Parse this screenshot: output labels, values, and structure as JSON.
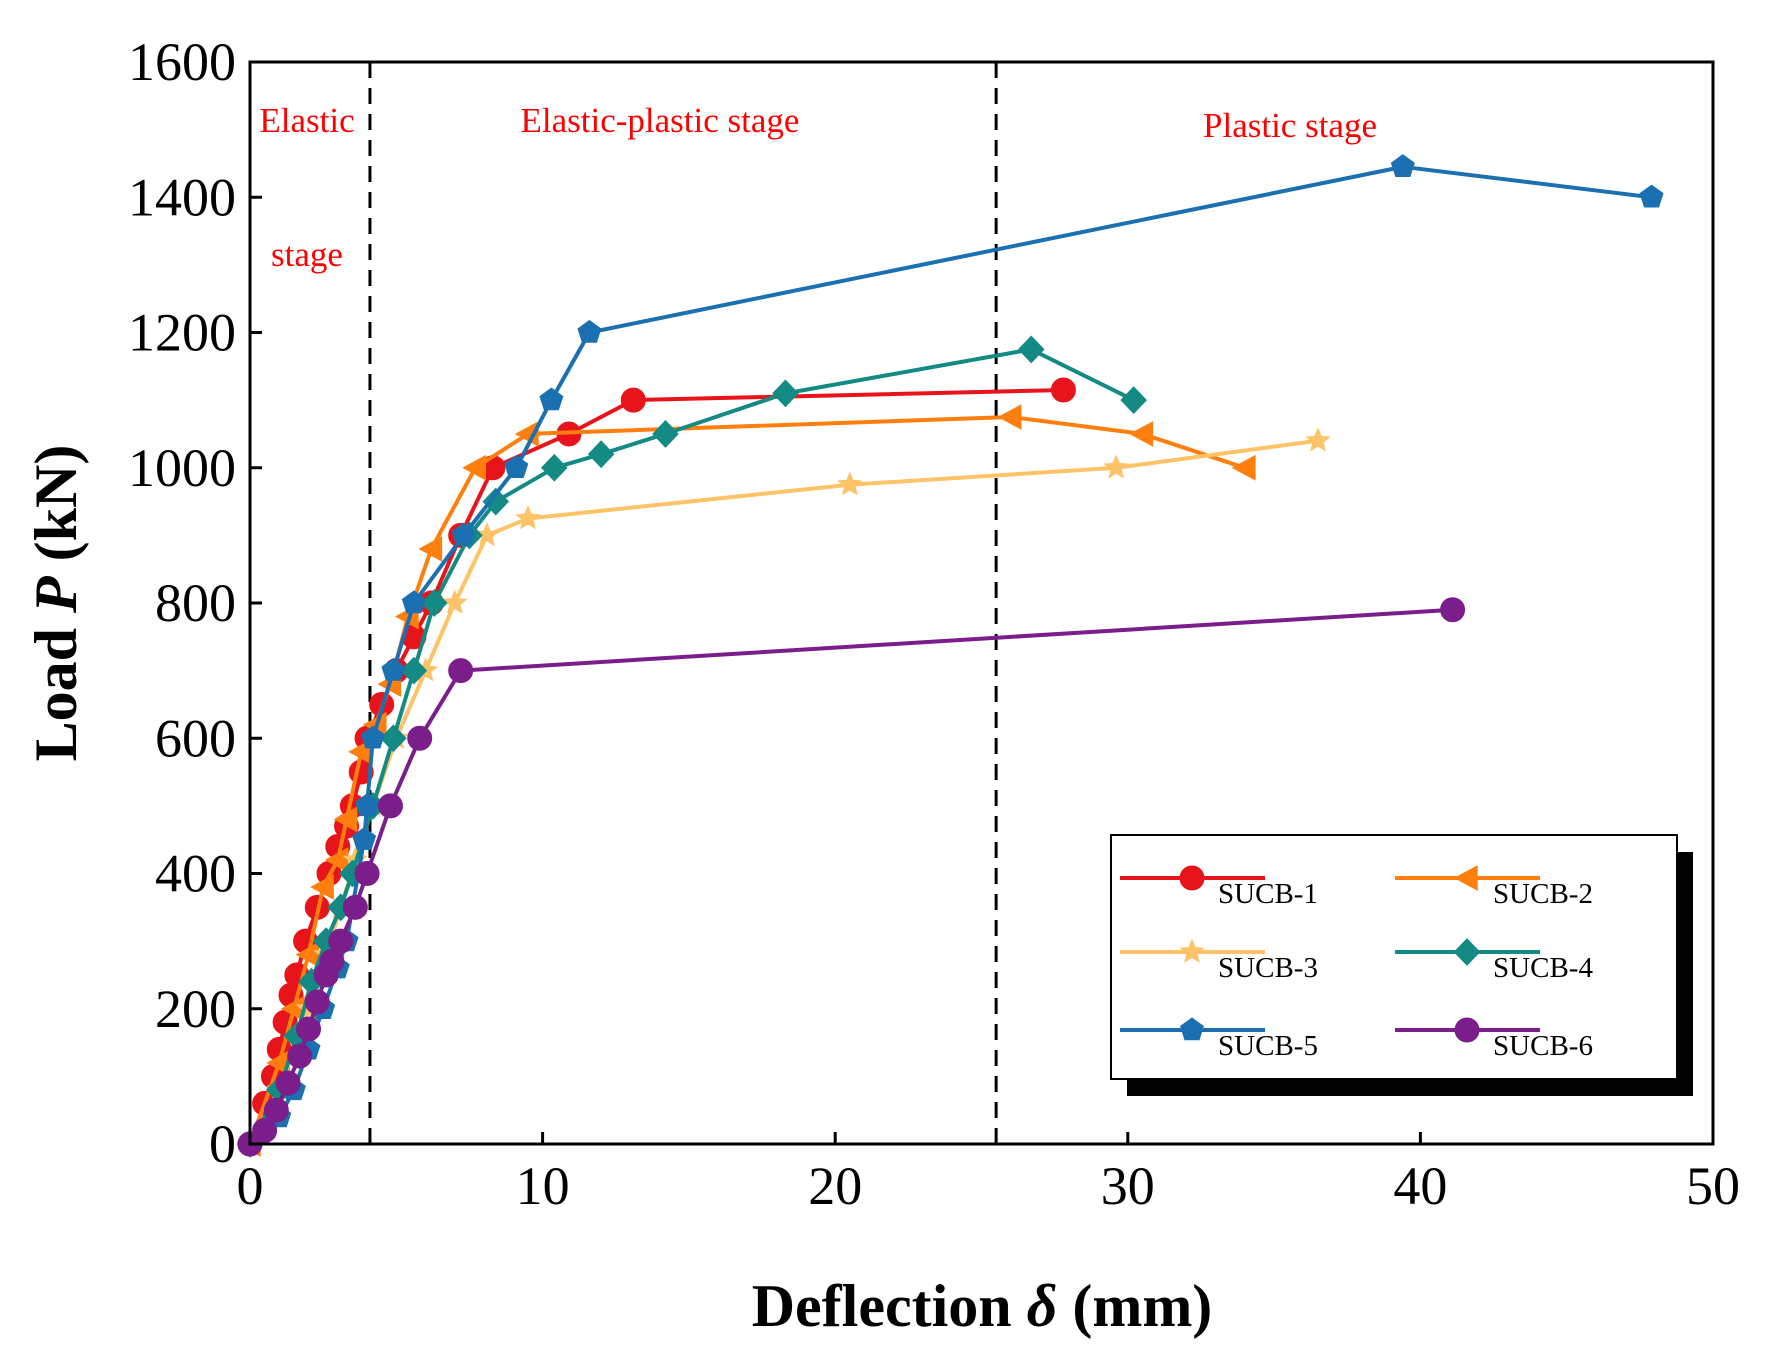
{
  "chart_data": {
    "type": "line",
    "title": "",
    "xlabel_prefix": "Deflection ",
    "xlabel_symbol": "δ",
    "xlabel_suffix": " (mm)",
    "ylabel_prefix": "Load ",
    "ylabel_symbol": "P",
    "ylabel_suffix": " (kN)",
    "xlim": [
      0,
      50
    ],
    "ylim": [
      0,
      1600
    ],
    "xticks": [
      0,
      10,
      20,
      30,
      40,
      50
    ],
    "xtick_labels": [
      "0",
      "10",
      "20",
      "30",
      "40",
      "50"
    ],
    "yticks": [
      0,
      200,
      400,
      600,
      800,
      1000,
      1200,
      1400,
      1600
    ],
    "ytick_labels": [
      "0",
      "200",
      "400",
      "600",
      "800",
      "1000",
      "1200",
      "1400",
      "1600"
    ],
    "grid": false,
    "legend_position": "bottom-right",
    "stage_boundaries": [
      4.1,
      25.5
    ],
    "annotations": {
      "elastic_line1": "Elastic",
      "elastic_line2": "stage",
      "elastic_plastic": "Elastic-plastic stage",
      "plastic": "Plastic stage"
    },
    "series": [
      {
        "name": "SUCB-1",
        "color": "#e8141b",
        "marker": "circle",
        "x": [
          0,
          0.5,
          0.8,
          1.0,
          1.2,
          1.4,
          1.6,
          1.9,
          2.3,
          2.7,
          3.0,
          3.3,
          3.5,
          3.8,
          4.0,
          4.5,
          5.0,
          5.6,
          6.2,
          7.2,
          8.3,
          10.9,
          13.1,
          27.8
        ],
        "y": [
          0,
          60,
          100,
          140,
          180,
          220,
          250,
          300,
          350,
          400,
          440,
          470,
          500,
          550,
          600,
          650,
          700,
          750,
          800,
          900,
          1000,
          1050,
          1100,
          1115
        ]
      },
      {
        "name": "SUCB-2",
        "color": "#ff7f0e",
        "marker": "triangle-left",
        "x": [
          0,
          1.0,
          1.5,
          2.0,
          2.5,
          3.0,
          3.3,
          3.8,
          4.3,
          4.8,
          5.4,
          6.2,
          7.7,
          9.5,
          26.0,
          30.5,
          34.0
        ],
        "y": [
          0,
          120,
          200,
          280,
          380,
          420,
          480,
          580,
          620,
          680,
          780,
          880,
          1000,
          1050,
          1075,
          1050,
          1000
        ]
      },
      {
        "name": "SUCB-3",
        "color": "#fdc366",
        "marker": "star",
        "x": [
          0,
          1.0,
          2.0,
          2.6,
          3.1,
          3.6,
          4.2,
          5.0,
          6.0,
          7.0,
          8.1,
          9.5,
          20.5,
          29.6,
          36.5
        ],
        "y": [
          0,
          80,
          200,
          280,
          350,
          420,
          500,
          600,
          700,
          800,
          900,
          925,
          975,
          1000,
          1040
        ]
      },
      {
        "name": "SUCB-4",
        "color": "#138a83",
        "marker": "diamond",
        "x": [
          0,
          1.0,
          1.6,
          2.1,
          2.6,
          3.1,
          3.5,
          4.2,
          4.9,
          5.6,
          6.3,
          7.5,
          8.4,
          10.4,
          12.0,
          14.2,
          18.3,
          26.7,
          30.2
        ],
        "y": [
          0,
          80,
          160,
          240,
          300,
          350,
          400,
          500,
          600,
          700,
          800,
          900,
          950,
          1000,
          1020,
          1050,
          1110,
          1175,
          1100
        ]
      },
      {
        "name": "SUCB-5",
        "color": "#1a70b0",
        "marker": "pentagon",
        "x": [
          0,
          1.0,
          1.5,
          2.0,
          2.5,
          3.0,
          3.3,
          3.9,
          4.0,
          4.2,
          4.9,
          5.6,
          7.3,
          9.1,
          10.3,
          11.6,
          39.4,
          47.9
        ],
        "y": [
          0,
          40,
          80,
          140,
          200,
          260,
          300,
          450,
          500,
          600,
          700,
          800,
          900,
          1000,
          1100,
          1200,
          1445,
          1400
        ]
      },
      {
        "name": "SUCB-6",
        "color": "#7b1e8c",
        "marker": "circle",
        "x": [
          0,
          0.5,
          0.9,
          1.3,
          1.7,
          2.0,
          2.3,
          2.6,
          2.8,
          3.1,
          3.6,
          4.0,
          4.8,
          5.8,
          7.2,
          41.1
        ],
        "y": [
          0,
          20,
          50,
          90,
          130,
          170,
          210,
          250,
          270,
          300,
          350,
          400,
          500,
          600,
          700,
          790
        ]
      }
    ]
  }
}
